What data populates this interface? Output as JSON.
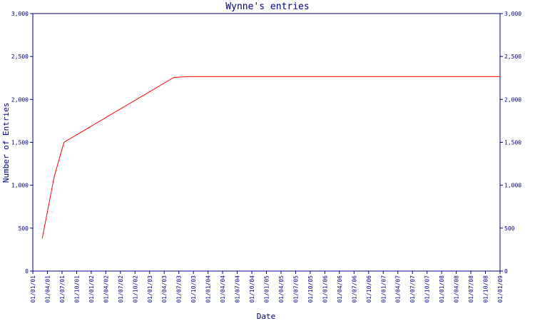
{
  "chart_data": {
    "type": "line",
    "title": "Wynne's entries",
    "xlabel": "Date",
    "ylabel": "Number of Entries",
    "ylim": [
      0,
      3000
    ],
    "y_ticks": [
      0,
      500,
      1000,
      1500,
      2000,
      2500,
      3000
    ],
    "y_tick_labels": [
      "0",
      "500",
      "1,000",
      "1,500",
      "2,000",
      "2,500",
      "3,000"
    ],
    "x_tick_labels": [
      "01/01/01",
      "01/04/01",
      "01/07/01",
      "01/10/01",
      "01/01/02",
      "01/04/02",
      "01/07/02",
      "01/10/02",
      "01/01/03",
      "01/04/03",
      "01/07/03",
      "01/10/03",
      "01/01/04",
      "01/04/04",
      "01/07/04",
      "01/10/04",
      "01/01/05",
      "01/04/05",
      "01/07/05",
      "01/10/05",
      "01/01/06",
      "01/04/06",
      "01/07/06",
      "01/10/06",
      "01/01/07",
      "01/04/07",
      "01/07/07",
      "01/10/07",
      "01/01/08",
      "01/04/08",
      "01/07/08",
      "01/10/08",
      "01/01/09"
    ],
    "series": [
      {
        "color": "#ff0000",
        "x": [
          "2001-03-01",
          "2001-05-15",
          "2001-07-15",
          "2003-06-01",
          "2003-09-01",
          "2009-01-01"
        ],
        "y": [
          380,
          1100,
          1500,
          2255,
          2265,
          2265
        ]
      }
    ],
    "grid": false,
    "right_axis": true,
    "axis_color": "#000080"
  }
}
